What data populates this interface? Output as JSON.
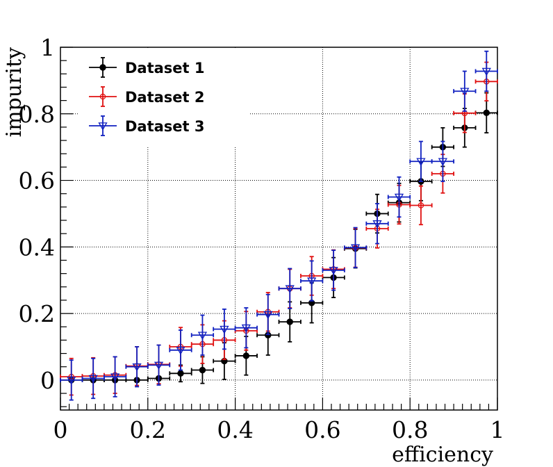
{
  "chart_data": {
    "type": "scatter",
    "title": "",
    "xlabel": "efficiency",
    "ylabel": "impurity",
    "xlim": [
      0,
      1
    ],
    "ylim": [
      -0.09,
      1.0
    ],
    "xticks": [
      0,
      0.2,
      0.4,
      0.6,
      0.8,
      1
    ],
    "xtick_labels": [
      "0",
      "0.2",
      "0.4",
      "0.6",
      "0.8",
      "1"
    ],
    "yticks": [
      0,
      0.2,
      0.4,
      0.6,
      0.8,
      1
    ],
    "ytick_labels": [
      "0",
      "0.2",
      "0.4",
      "0.6",
      "0.8",
      "1"
    ],
    "grid": true,
    "legend_position": "top-left",
    "series": [
      {
        "name": "Dataset 1",
        "color": "#000000",
        "marker": "filled-circle",
        "points": [
          {
            "x": 0.025,
            "xerr": 0.025,
            "y": 0.0,
            "yerr": 0.0
          },
          {
            "x": 0.075,
            "xerr": 0.025,
            "y": 0.0,
            "yerr": 0.0
          },
          {
            "x": 0.125,
            "xerr": 0.025,
            "y": 0.0,
            "yerr": 0.0
          },
          {
            "x": 0.175,
            "xerr": 0.025,
            "y": 0.0,
            "yerr": 0.0
          },
          {
            "x": 0.225,
            "xerr": 0.025,
            "y": 0.005,
            "yerr": 0.0
          },
          {
            "x": 0.275,
            "xerr": 0.025,
            "y": 0.02,
            "yerr": 0.025
          },
          {
            "x": 0.325,
            "xerr": 0.025,
            "y": 0.03,
            "yerr": 0.04
          },
          {
            "x": 0.375,
            "xerr": 0.025,
            "y": 0.057,
            "yerr": 0.055
          },
          {
            "x": 0.425,
            "xerr": 0.025,
            "y": 0.073,
            "yerr": 0.058
          },
          {
            "x": 0.475,
            "xerr": 0.025,
            "y": 0.135,
            "yerr": 0.06
          },
          {
            "x": 0.525,
            "xerr": 0.025,
            "y": 0.175,
            "yerr": 0.06
          },
          {
            "x": 0.575,
            "xerr": 0.025,
            "y": 0.232,
            "yerr": 0.06
          },
          {
            "x": 0.625,
            "xerr": 0.025,
            "y": 0.308,
            "yerr": 0.06
          },
          {
            "x": 0.675,
            "xerr": 0.025,
            "y": 0.395,
            "yerr": 0.058
          },
          {
            "x": 0.725,
            "xerr": 0.025,
            "y": 0.5,
            "yerr": 0.058
          },
          {
            "x": 0.775,
            "xerr": 0.025,
            "y": 0.533,
            "yerr": 0.058
          },
          {
            "x": 0.825,
            "xerr": 0.025,
            "y": 0.597,
            "yerr": 0.058
          },
          {
            "x": 0.875,
            "xerr": 0.025,
            "y": 0.7,
            "yerr": 0.058
          },
          {
            "x": 0.925,
            "xerr": 0.025,
            "y": 0.758,
            "yerr": 0.058
          },
          {
            "x": 0.975,
            "xerr": 0.025,
            "y": 0.803,
            "yerr": 0.06
          }
        ]
      },
      {
        "name": "Dataset 2",
        "color": "#e01010",
        "marker": "open-circle",
        "points": [
          {
            "x": 0.025,
            "xerr": 0.025,
            "y": 0.01,
            "yerr": 0.055
          },
          {
            "x": 0.075,
            "xerr": 0.025,
            "y": 0.012,
            "yerr": 0.055
          },
          {
            "x": 0.125,
            "xerr": 0.025,
            "y": 0.015,
            "yerr": 0.055
          },
          {
            "x": 0.175,
            "xerr": 0.025,
            "y": 0.042,
            "yerr": 0.058
          },
          {
            "x": 0.225,
            "xerr": 0.025,
            "y": 0.047,
            "yerr": 0.058
          },
          {
            "x": 0.275,
            "xerr": 0.025,
            "y": 0.1,
            "yerr": 0.058
          },
          {
            "x": 0.325,
            "xerr": 0.025,
            "y": 0.108,
            "yerr": 0.058
          },
          {
            "x": 0.375,
            "xerr": 0.025,
            "y": 0.12,
            "yerr": 0.058
          },
          {
            "x": 0.425,
            "xerr": 0.025,
            "y": 0.148,
            "yerr": 0.058
          },
          {
            "x": 0.475,
            "xerr": 0.025,
            "y": 0.205,
            "yerr": 0.058
          },
          {
            "x": 0.525,
            "xerr": 0.025,
            "y": 0.275,
            "yerr": 0.058
          },
          {
            "x": 0.575,
            "xerr": 0.025,
            "y": 0.313,
            "yerr": 0.058
          },
          {
            "x": 0.625,
            "xerr": 0.025,
            "y": 0.333,
            "yerr": 0.058
          },
          {
            "x": 0.675,
            "xerr": 0.025,
            "y": 0.397,
            "yerr": 0.058
          },
          {
            "x": 0.725,
            "xerr": 0.025,
            "y": 0.455,
            "yerr": 0.058
          },
          {
            "x": 0.775,
            "xerr": 0.025,
            "y": 0.527,
            "yerr": 0.058
          },
          {
            "x": 0.825,
            "xerr": 0.025,
            "y": 0.525,
            "yerr": 0.058
          },
          {
            "x": 0.875,
            "xerr": 0.025,
            "y": 0.62,
            "yerr": 0.058
          },
          {
            "x": 0.925,
            "xerr": 0.025,
            "y": 0.802,
            "yerr": 0.058
          },
          {
            "x": 0.975,
            "xerr": 0.025,
            "y": 0.897,
            "yerr": 0.058
          }
        ]
      },
      {
        "name": "Dataset 3",
        "color": "#1020c0",
        "marker": "open-triangle-down",
        "points": [
          {
            "x": 0.025,
            "xerr": 0.025,
            "y": 0.0,
            "yerr": 0.06
          },
          {
            "x": 0.075,
            "xerr": 0.025,
            "y": 0.005,
            "yerr": 0.06
          },
          {
            "x": 0.125,
            "xerr": 0.025,
            "y": 0.01,
            "yerr": 0.06
          },
          {
            "x": 0.175,
            "xerr": 0.025,
            "y": 0.04,
            "yerr": 0.06
          },
          {
            "x": 0.225,
            "xerr": 0.025,
            "y": 0.045,
            "yerr": 0.06
          },
          {
            "x": 0.275,
            "xerr": 0.025,
            "y": 0.09,
            "yerr": 0.06
          },
          {
            "x": 0.325,
            "xerr": 0.025,
            "y": 0.135,
            "yerr": 0.06
          },
          {
            "x": 0.375,
            "xerr": 0.025,
            "y": 0.153,
            "yerr": 0.06
          },
          {
            "x": 0.425,
            "xerr": 0.025,
            "y": 0.157,
            "yerr": 0.06
          },
          {
            "x": 0.475,
            "xerr": 0.025,
            "y": 0.197,
            "yerr": 0.06
          },
          {
            "x": 0.525,
            "xerr": 0.025,
            "y": 0.275,
            "yerr": 0.06
          },
          {
            "x": 0.575,
            "xerr": 0.025,
            "y": 0.298,
            "yerr": 0.06
          },
          {
            "x": 0.625,
            "xerr": 0.025,
            "y": 0.33,
            "yerr": 0.06
          },
          {
            "x": 0.675,
            "xerr": 0.025,
            "y": 0.398,
            "yerr": 0.06
          },
          {
            "x": 0.725,
            "xerr": 0.025,
            "y": 0.47,
            "yerr": 0.06
          },
          {
            "x": 0.775,
            "xerr": 0.025,
            "y": 0.55,
            "yerr": 0.06
          },
          {
            "x": 0.825,
            "xerr": 0.025,
            "y": 0.657,
            "yerr": 0.06
          },
          {
            "x": 0.875,
            "xerr": 0.025,
            "y": 0.657,
            "yerr": 0.06
          },
          {
            "x": 0.925,
            "xerr": 0.025,
            "y": 0.868,
            "yerr": 0.06
          },
          {
            "x": 0.975,
            "xerr": 0.025,
            "y": 0.928,
            "yerr": 0.06
          }
        ]
      }
    ]
  }
}
